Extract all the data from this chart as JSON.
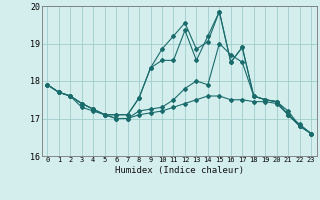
{
  "title": "",
  "xlabel": "Humidex (Indice chaleur)",
  "bg_color": "#d4eeee",
  "grid_color": "#a0cccc",
  "line_color": "#1a6b6b",
  "xlim": [
    -0.5,
    23.5
  ],
  "ylim": [
    16,
    20
  ],
  "yticks": [
    16,
    17,
    18,
    19,
    20
  ],
  "xticks": [
    0,
    1,
    2,
    3,
    4,
    5,
    6,
    7,
    8,
    9,
    10,
    11,
    12,
    13,
    14,
    15,
    16,
    17,
    18,
    19,
    20,
    21,
    22,
    23
  ],
  "series": [
    {
      "x": [
        0,
        1,
        2,
        3,
        4,
        5,
        6,
        7,
        8,
        9,
        10,
        11,
        12,
        13,
        14,
        15,
        16,
        17,
        18,
        19,
        20,
        21,
        22,
        23
      ],
      "y": [
        17.9,
        17.7,
        17.6,
        17.4,
        17.25,
        17.1,
        17.0,
        17.0,
        17.2,
        17.25,
        17.3,
        17.5,
        17.8,
        18.0,
        17.9,
        19.0,
        18.7,
        18.5,
        17.6,
        17.5,
        17.45,
        17.2,
        16.8,
        16.6
      ]
    },
    {
      "x": [
        0,
        1,
        2,
        3,
        4,
        5,
        6,
        7,
        8,
        9,
        10,
        11,
        12,
        13,
        14,
        15,
        16,
        17,
        18,
        19,
        20,
        21,
        22,
        23
      ],
      "y": [
        17.9,
        17.7,
        17.6,
        17.4,
        17.25,
        17.1,
        17.1,
        17.1,
        17.55,
        18.35,
        18.85,
        19.2,
        19.55,
        18.85,
        19.05,
        19.85,
        18.5,
        18.9,
        17.6,
        17.5,
        17.45,
        17.1,
        16.8,
        16.6
      ]
    },
    {
      "x": [
        0,
        1,
        2,
        3,
        4,
        5,
        6,
        7,
        8,
        9,
        10,
        11,
        12,
        13,
        14,
        15,
        16,
        17,
        18,
        19,
        20,
        21,
        22,
        23
      ],
      "y": [
        17.9,
        17.7,
        17.6,
        17.4,
        17.25,
        17.1,
        17.1,
        17.1,
        17.55,
        18.35,
        18.55,
        18.55,
        19.35,
        18.55,
        19.2,
        19.85,
        18.5,
        18.9,
        17.6,
        17.5,
        17.45,
        17.1,
        16.8,
        16.6
      ]
    },
    {
      "x": [
        0,
        1,
        2,
        3,
        4,
        5,
        6,
        7,
        8,
        9,
        10,
        11,
        12,
        13,
        14,
        15,
        16,
        17,
        18,
        19,
        20,
        21,
        22,
        23
      ],
      "y": [
        17.9,
        17.7,
        17.6,
        17.3,
        17.2,
        17.1,
        17.0,
        17.0,
        17.1,
        17.15,
        17.2,
        17.3,
        17.4,
        17.5,
        17.6,
        17.6,
        17.5,
        17.5,
        17.45,
        17.45,
        17.4,
        17.1,
        16.85,
        16.6
      ]
    }
  ]
}
